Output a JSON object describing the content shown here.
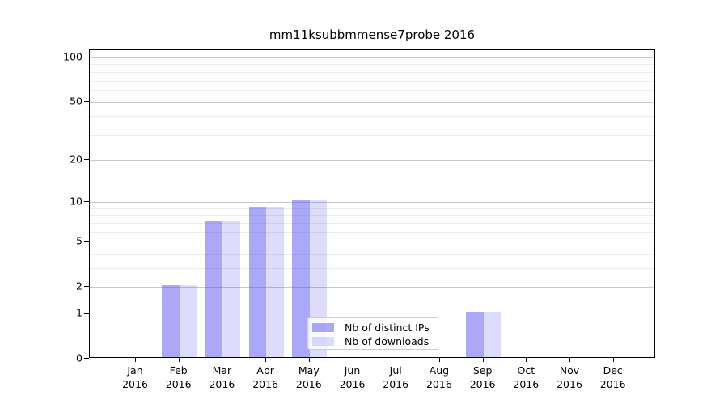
{
  "title": "mm11ksubbmmense7probe 2016",
  "chart_data": {
    "type": "bar",
    "title": "mm11ksubbmmense7probe 2016",
    "categories": [
      [
        "Jan",
        "2016"
      ],
      [
        "Feb",
        "2016"
      ],
      [
        "Mar",
        "2016"
      ],
      [
        "Apr",
        "2016"
      ],
      [
        "May",
        "2016"
      ],
      [
        "Jun",
        "2016"
      ],
      [
        "Jul",
        "2016"
      ],
      [
        "Aug",
        "2016"
      ],
      [
        "Sep",
        "2016"
      ],
      [
        "Oct",
        "2016"
      ],
      [
        "Nov",
        "2016"
      ],
      [
        "Dec",
        "2016"
      ]
    ],
    "series": [
      {
        "name": "Nb of distinct IPs",
        "color": "rgba(86,82,240,0.5)",
        "values": [
          0,
          2,
          7,
          9,
          10,
          0,
          0,
          0,
          1,
          0,
          0,
          0
        ]
      },
      {
        "name": "Nb of downloads",
        "color": "rgba(86,82,240,0.2)",
        "values": [
          0,
          2,
          7,
          9,
          10,
          0,
          0,
          0,
          1,
          0,
          0,
          0
        ]
      }
    ],
    "xlabel": "",
    "ylabel": "",
    "yscale": "log1p",
    "ylim": [
      0,
      112
    ],
    "yticks": [
      0,
      1,
      2,
      5,
      10,
      20,
      50,
      100
    ],
    "minor_gridlines": [
      3,
      4,
      6,
      7,
      8,
      9,
      30,
      40,
      60,
      70,
      80,
      90
    ],
    "grid": "horizontal",
    "legend_position": "lower center"
  },
  "colors": {
    "bar_distinct_ips_effective": "#aaa9f6",
    "bar_downloads_effective": "#dedcfa",
    "major_grid": "#c8c8c8",
    "minor_grid": "#ebebeb",
    "spine": "#000000",
    "background": "#ffffff"
  }
}
